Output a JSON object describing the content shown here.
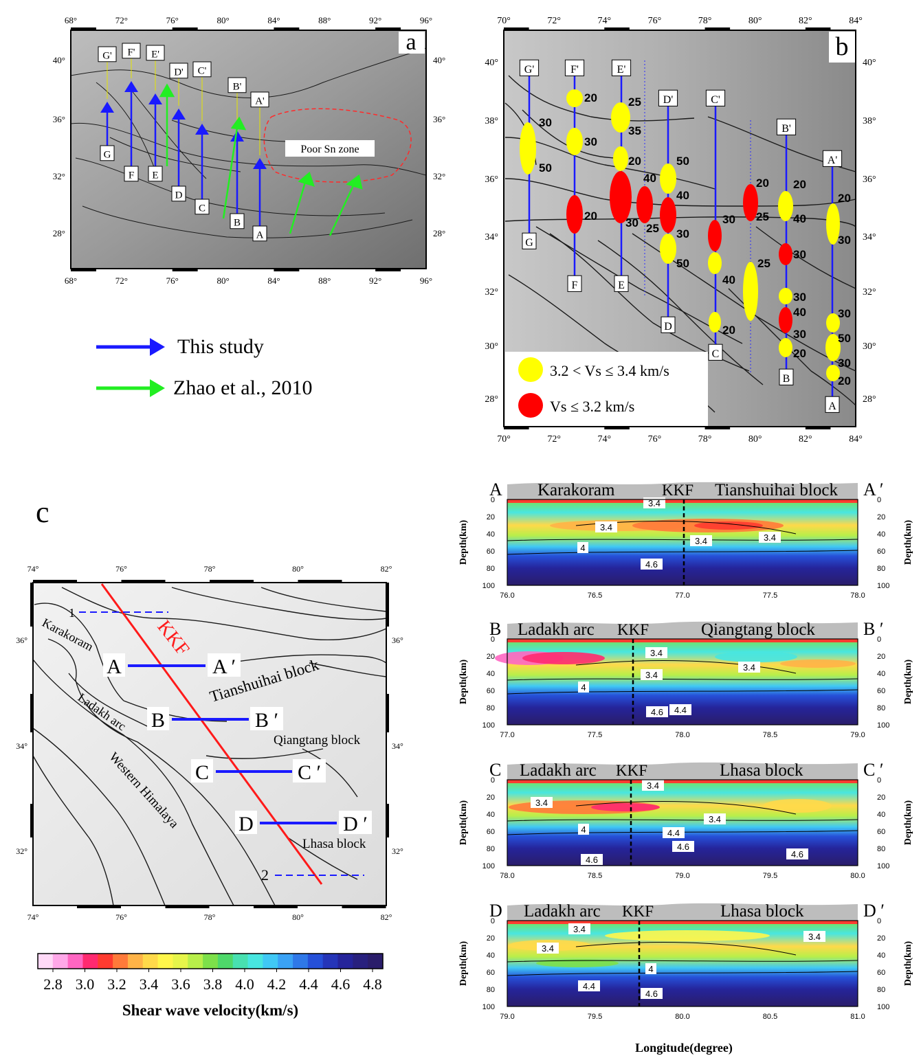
{
  "panel_a": {
    "letter": "a",
    "lon_ticks": [
      "68°",
      "72°",
      "76°",
      "80°",
      "84°",
      "88°",
      "92°",
      "96°"
    ],
    "lat_ticks": [
      "40°",
      "36°",
      "32°",
      "28°"
    ],
    "poor_sn_label": "Poor Sn zone",
    "profiles": [
      {
        "start": "G",
        "end": "G'"
      },
      {
        "start": "F",
        "end": "F'"
      },
      {
        "start": "E",
        "end": "E'"
      },
      {
        "start": "D",
        "end": "D'"
      },
      {
        "start": "C",
        "end": "C'"
      },
      {
        "start": "B",
        "end": "B'"
      },
      {
        "start": "A",
        "end": "A'"
      }
    ]
  },
  "legend_a": {
    "this_study": "This study",
    "zhao": "Zhao et al., 2010",
    "this_study_color": "#1a1aff",
    "zhao_color": "#22ee22"
  },
  "panel_b": {
    "letter": "b",
    "lon_ticks": [
      "70°",
      "72°",
      "74°",
      "76°",
      "78°",
      "80°",
      "82°",
      "84°"
    ],
    "lat_ticks": [
      "40°",
      "38°",
      "36°",
      "34°",
      "32°",
      "30°",
      "28°"
    ],
    "profiles": [
      {
        "start": "G",
        "end": "G'"
      },
      {
        "start": "F",
        "end": "F'"
      },
      {
        "start": "E",
        "end": "E'"
      },
      {
        "start": "D",
        "end": "D'"
      },
      {
        "start": "C",
        "end": "C'"
      },
      {
        "start": "B",
        "end": "B'"
      },
      {
        "start": "A",
        "end": "A'"
      }
    ],
    "depth_labels": {
      "G": [
        "30",
        "50"
      ],
      "F": [
        "20",
        "30",
        "20"
      ],
      "E": [
        "25",
        "35",
        "20",
        "30"
      ],
      "mid": [
        "40",
        "25"
      ],
      "D": [
        "50",
        "40",
        "30",
        "50"
      ],
      "C": [
        "30",
        "40",
        "20"
      ],
      "mid2": [
        "20",
        "25",
        "25"
      ],
      "B": [
        "20",
        "40",
        "30",
        "30",
        "40",
        "30",
        "20"
      ],
      "A": [
        "20",
        "30",
        "30",
        "50",
        "30",
        "20"
      ]
    },
    "legend": {
      "yellow": "3.2 < Vs ≤ 3.4 km/s",
      "red": "Vs ≤ 3.2 km/s",
      "yellow_color": "#ffff00",
      "red_color": "#ff0000"
    }
  },
  "panel_c": {
    "letter": "c",
    "lon_ticks": [
      "74°",
      "76°",
      "78°",
      "80°",
      "82°"
    ],
    "lat_ticks": [
      "36°",
      "34°",
      "32°"
    ],
    "fault_label": "KKF",
    "blocks": [
      "Karakoram",
      "Tianshuihai block",
      "Ladakh arc",
      "Qiangtang block",
      "Western Himalaya",
      "Lhasa block"
    ],
    "sections": [
      {
        "start": "A",
        "end": "A ′"
      },
      {
        "start": "B",
        "end": "B ′"
      },
      {
        "start": "C",
        "end": "C ′"
      },
      {
        "start": "D",
        "end": "D ′"
      }
    ],
    "line_labels": [
      "1",
      "2"
    ]
  },
  "colorbar": {
    "ticks": [
      "2.8",
      "3.0",
      "3.2",
      "3.4",
      "3.6",
      "3.8",
      "4.0",
      "4.2",
      "4.4",
      "4.6",
      "4.8"
    ],
    "title": "Shear wave velocity(km/s)",
    "colors": [
      "#ffd9f7",
      "#ffa8e8",
      "#ff66c2",
      "#ff2a70",
      "#ff3b30",
      "#ff7a3a",
      "#ffb347",
      "#ffd94a",
      "#fff64a",
      "#e6f54a",
      "#b8ef4a",
      "#7de04a",
      "#4ed86a",
      "#48e0b0",
      "#48e6e0",
      "#40c8f5",
      "#3aa2f5",
      "#2f78e8",
      "#2650d8",
      "#2535b8",
      "#25249a",
      "#28207e",
      "#2a1d6a"
    ]
  },
  "sections": {
    "depth_axis_label": "Depth(km)",
    "depth_ticks": [
      "0",
      "20",
      "40",
      "60",
      "80",
      "100"
    ],
    "x_axis_label": "Longitude(degree)",
    "AA": {
      "start": "A",
      "end": "A ′",
      "left_block": "Karakoram",
      "fault": "KKF",
      "right_block": "Tianshuihai block",
      "x_ticks": [
        "76.0",
        "76.5",
        "77.0",
        "77.5",
        "78.0"
      ],
      "contours": [
        "3.4",
        "3.4",
        "3.4",
        "3.4",
        "4",
        "4.6"
      ]
    },
    "BB": {
      "start": "B",
      "end": "B ′",
      "left_block": "Ladakh arc",
      "fault": "KKF",
      "right_block": "Qiangtang block",
      "x_ticks": [
        "77.0",
        "77.5",
        "78.0",
        "78.5",
        "79.0"
      ],
      "contours": [
        "3.4",
        "3.4",
        "3.4",
        "4",
        "4.6",
        "4.4"
      ]
    },
    "CC": {
      "start": "C",
      "end": "C ′",
      "left_block": "Ladakh arc",
      "fault": "KKF",
      "right_block": "Lhasa block",
      "x_ticks": [
        "78.0",
        "78.5",
        "79.0",
        "79.5",
        "80.0"
      ],
      "contours": [
        "3.4",
        "3.4",
        "3.4",
        "4",
        "4.4",
        "4.6",
        "4.6",
        "4.6"
      ]
    },
    "DD": {
      "start": "D",
      "end": "D ′",
      "left_block": "Ladakh arc",
      "fault": "KKF",
      "right_block": "Lhasa block",
      "x_ticks": [
        "79.0",
        "79.5",
        "80.0",
        "80.5",
        "81.0"
      ],
      "contours": [
        "3.4",
        "3.4",
        "3.4",
        "4",
        "4.4",
        "4.6"
      ]
    }
  }
}
